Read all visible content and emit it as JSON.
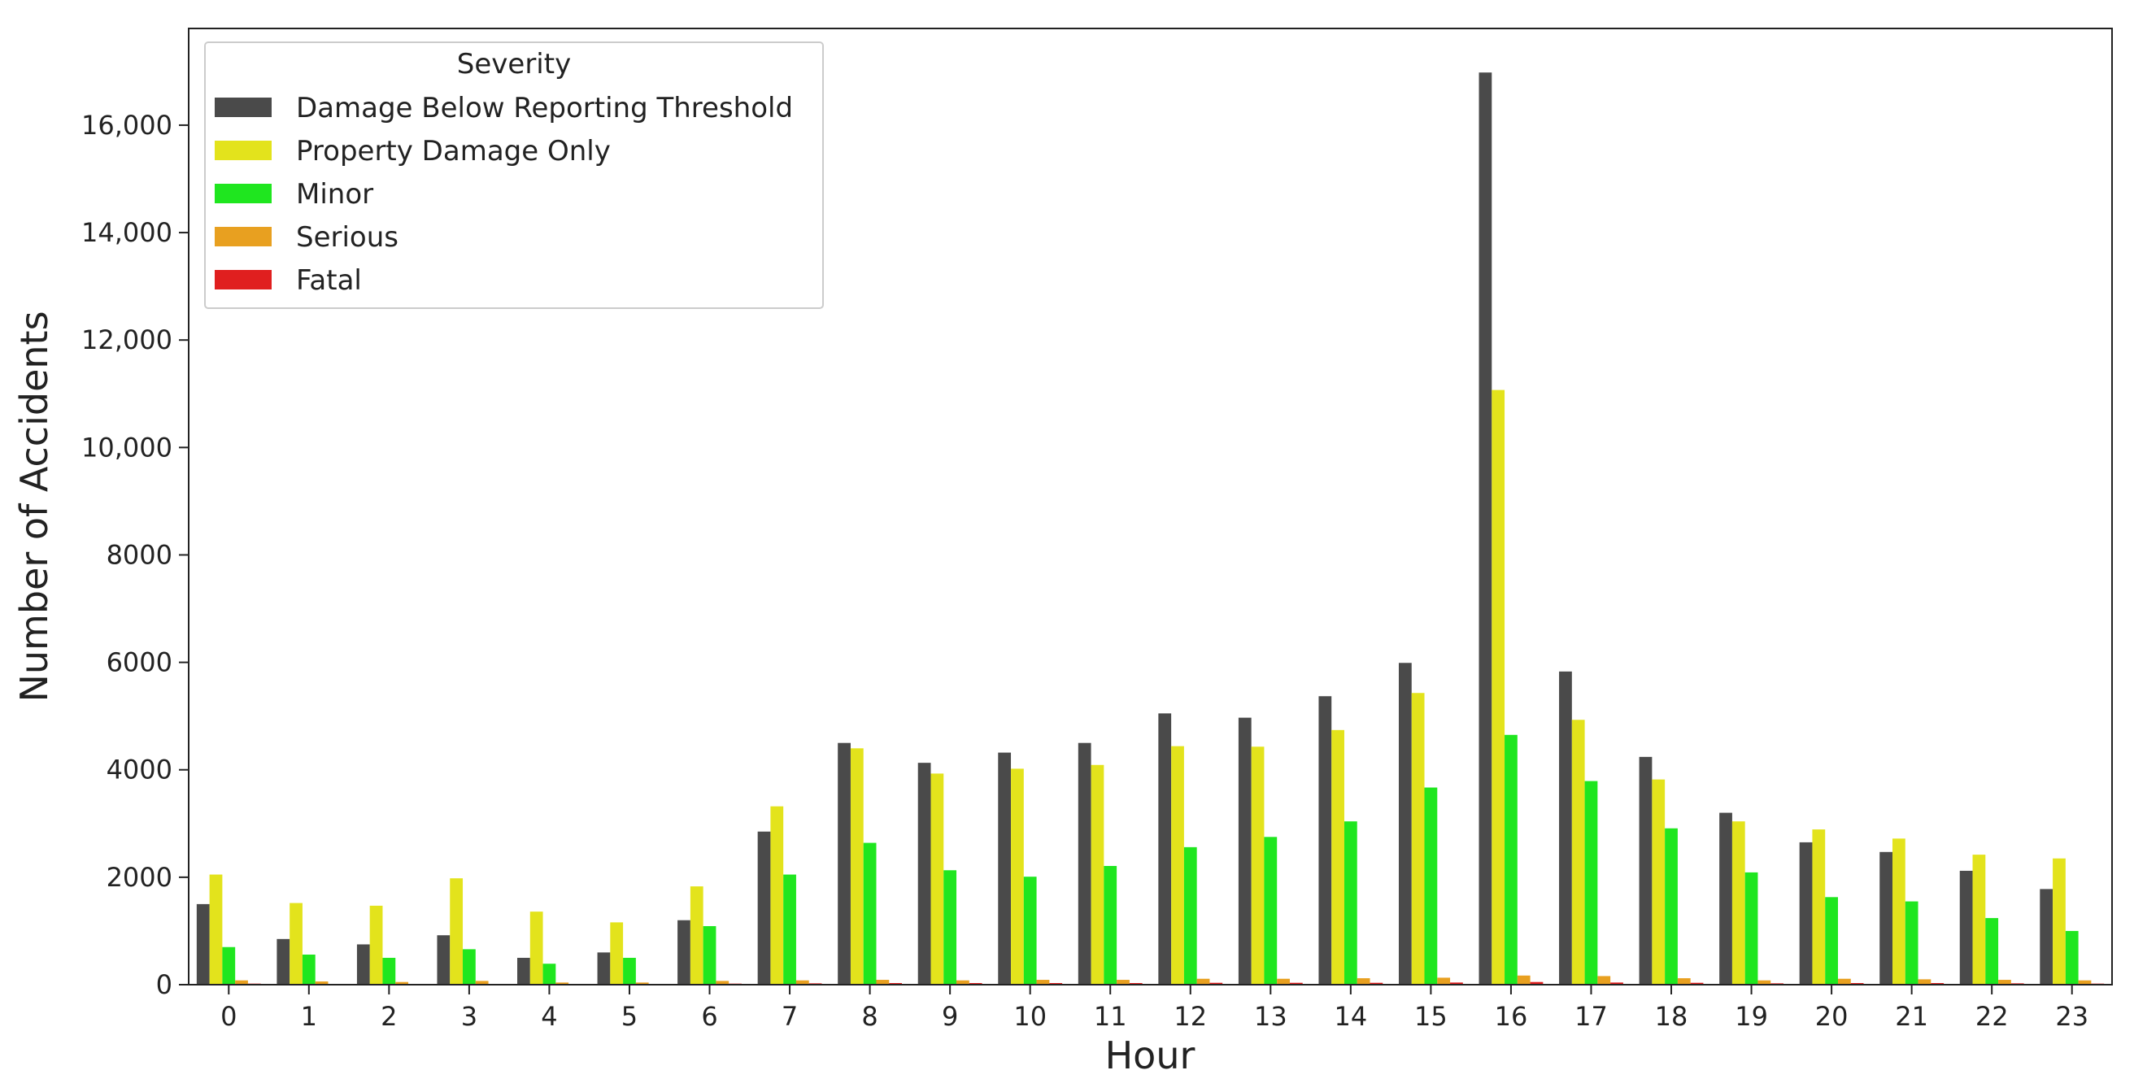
{
  "chart_data": {
    "type": "bar",
    "title": "",
    "xlabel": "Hour",
    "ylabel": "Number of Accidents",
    "categories": [
      "0",
      "1",
      "2",
      "3",
      "4",
      "5",
      "6",
      "7",
      "8",
      "9",
      "10",
      "11",
      "12",
      "13",
      "14",
      "15",
      "16",
      "17",
      "18",
      "19",
      "20",
      "21",
      "22",
      "23"
    ],
    "ylim": [
      0,
      17800
    ],
    "yticks": [
      0,
      2000,
      4000,
      6000,
      8000,
      10000,
      12000,
      14000,
      16000
    ],
    "ytick_labels": [
      "0",
      "2000",
      "4000",
      "6000",
      "8000",
      "10,000",
      "12,000",
      "14,000",
      "16,000"
    ],
    "grid": false,
    "legend": {
      "title": "Severity",
      "placement": "top-left"
    },
    "series": [
      {
        "name": "Damage Below Reporting Threshold",
        "color": "#4a4a4a",
        "values": [
          1500,
          850,
          750,
          920,
          500,
          600,
          1200,
          2850,
          4500,
          4130,
          4320,
          4500,
          5050,
          4970,
          5370,
          5990,
          16980,
          5830,
          4240,
          3200,
          2650,
          2470,
          2120,
          1780
        ]
      },
      {
        "name": "Property Damage Only",
        "color": "#e3e31c",
        "values": [
          2050,
          1520,
          1470,
          1980,
          1360,
          1160,
          1830,
          3320,
          4400,
          3930,
          4020,
          4090,
          4440,
          4430,
          4740,
          5430,
          11070,
          4930,
          3820,
          3040,
          2890,
          2720,
          2420,
          2350
        ]
      },
      {
        "name": "Minor",
        "color": "#1fe61f",
        "values": [
          700,
          560,
          500,
          660,
          390,
          500,
          1090,
          2050,
          2640,
          2130,
          2010,
          2210,
          2560,
          2750,
          3040,
          3670,
          4650,
          3790,
          2910,
          2090,
          1630,
          1550,
          1240,
          1000
        ]
      },
      {
        "name": "Serious",
        "color": "#e8a020",
        "values": [
          80,
          60,
          50,
          70,
          40,
          40,
          70,
          80,
          90,
          80,
          90,
          90,
          110,
          110,
          120,
          130,
          170,
          160,
          120,
          80,
          110,
          100,
          90,
          80
        ]
      },
      {
        "name": "Fatal",
        "color": "#e01f1f",
        "values": [
          20,
          15,
          15,
          15,
          10,
          10,
          20,
          25,
          30,
          30,
          30,
          30,
          35,
          35,
          35,
          40,
          50,
          40,
          35,
          25,
          30,
          30,
          25,
          20
        ]
      }
    ]
  }
}
